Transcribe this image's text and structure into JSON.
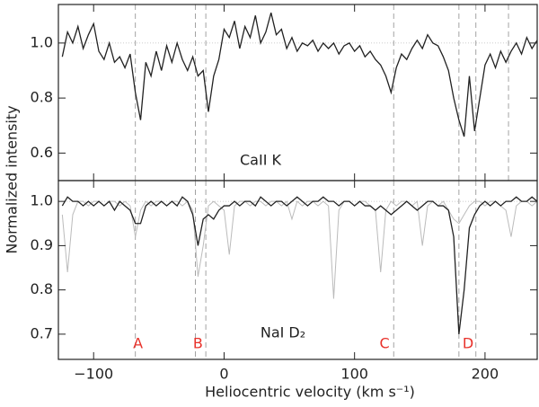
{
  "chart_data": [
    {
      "type": "line",
      "label": "CaII K",
      "ylabel": "Normalized intensity",
      "xlim": [
        -127,
        240
      ],
      "ylim": [
        0.5,
        1.14
      ],
      "xticks": [
        {
          "value": -100,
          "label": "−100"
        },
        0,
        100,
        200
      ],
      "yticks": [
        0.6,
        0.8,
        {
          "value": 1,
          "label": "1.0"
        }
      ],
      "hline": 1,
      "vlines": [
        -68,
        -22,
        -14,
        130,
        180,
        193,
        218
      ],
      "x": [
        -124,
        -120,
        -116,
        -112,
        -108,
        -104,
        -100,
        -96,
        -92,
        -88,
        -84,
        -80,
        -76,
        -72,
        -68,
        -64,
        -60,
        -56,
        -52,
        -48,
        -44,
        -40,
        -36,
        -32,
        -28,
        -24,
        -20,
        -16,
        -12,
        -8,
        -4,
        0,
        4,
        8,
        12,
        16,
        20,
        24,
        28,
        32,
        36,
        40,
        44,
        48,
        52,
        56,
        60,
        64,
        68,
        72,
        76,
        80,
        84,
        88,
        92,
        96,
        100,
        104,
        108,
        112,
        116,
        120,
        124,
        128,
        132,
        136,
        140,
        144,
        148,
        152,
        156,
        160,
        164,
        168,
        172,
        176,
        180,
        184,
        188,
        192,
        196,
        200,
        204,
        208,
        212,
        216,
        220,
        224,
        228,
        232,
        236,
        240
      ],
      "series": [
        {
          "color": "#222222",
          "values": [
            0.95,
            1.04,
            1.0,
            1.06,
            0.98,
            1.03,
            1.07,
            0.97,
            0.94,
            1.0,
            0.93,
            0.95,
            0.91,
            0.96,
            0.82,
            0.72,
            0.93,
            0.88,
            0.97,
            0.9,
            0.99,
            0.93,
            1.0,
            0.94,
            0.9,
            0.95,
            0.88,
            0.9,
            0.75,
            0.88,
            0.94,
            1.05,
            1.02,
            1.08,
            0.98,
            1.06,
            1.02,
            1.1,
            1.0,
            1.04,
            1.11,
            1.03,
            1.05,
            0.98,
            1.02,
            0.97,
            1.0,
            0.99,
            1.01,
            0.97,
            1.0,
            0.98,
            1.0,
            0.96,
            0.99,
            1.0,
            0.97,
            0.99,
            0.95,
            0.97,
            0.94,
            0.92,
            0.88,
            0.82,
            0.91,
            0.96,
            0.94,
            0.98,
            1.01,
            0.98,
            1.03,
            1.0,
            0.99,
            0.95,
            0.9,
            0.8,
            0.72,
            0.66,
            0.88,
            0.68,
            0.8,
            0.92,
            0.96,
            0.91,
            0.97,
            0.93,
            0.97,
            1.0,
            0.96,
            1.02,
            0.98,
            1.01
          ]
        }
      ]
    },
    {
      "type": "line",
      "label": "NaI D₂",
      "xlabel": "Heliocentric velocity (km s⁻¹)",
      "xlim": [
        -127,
        240
      ],
      "ylim": [
        0.643,
        1.047
      ],
      "xticks": [
        {
          "value": -100,
          "label": "−100"
        },
        0,
        100,
        200
      ],
      "yticks": [
        0.7,
        0.8,
        0.9,
        {
          "value": 1,
          "label": "1.0"
        }
      ],
      "hline": 1,
      "vlines": [
        -68,
        -22,
        -14,
        130,
        180,
        193
      ],
      "annotations": [
        {
          "text": "A",
          "x": -66,
          "color": "#e8312a"
        },
        {
          "text": "B",
          "x": -20,
          "color": "#e8312a"
        },
        {
          "text": "C",
          "x": 123,
          "color": "#e8312a"
        },
        {
          "text": "D",
          "x": 187,
          "color": "#e8312a"
        }
      ],
      "x": [
        -124,
        -120,
        -116,
        -112,
        -108,
        -104,
        -100,
        -96,
        -92,
        -88,
        -84,
        -80,
        -76,
        -72,
        -68,
        -64,
        -60,
        -56,
        -52,
        -48,
        -44,
        -40,
        -36,
        -32,
        -28,
        -24,
        -20,
        -16,
        -12,
        -8,
        -4,
        0,
        4,
        8,
        12,
        16,
        20,
        24,
        28,
        32,
        36,
        40,
        44,
        48,
        52,
        56,
        60,
        64,
        68,
        72,
        76,
        80,
        84,
        88,
        92,
        96,
        100,
        104,
        108,
        112,
        116,
        120,
        124,
        128,
        132,
        136,
        140,
        144,
        148,
        152,
        156,
        160,
        164,
        168,
        172,
        176,
        180,
        184,
        188,
        192,
        196,
        200,
        204,
        208,
        212,
        216,
        220,
        224,
        228,
        232,
        236,
        240
      ],
      "series": [
        {
          "color": "#bbbbbb",
          "values": [
            0.97,
            0.84,
            0.97,
            1.0,
            1.0,
            0.99,
            1.0,
            1.0,
            0.99,
            1.0,
            1.0,
            0.99,
            1.0,
            0.99,
            0.92,
            0.98,
            1.0,
            0.99,
            1.0,
            1.0,
            0.99,
            1.0,
            1.0,
            0.99,
            1.0,
            0.98,
            0.83,
            0.9,
            0.99,
            1.0,
            0.99,
            0.98,
            0.88,
            0.99,
            1.0,
            1.0,
            0.99,
            1.0,
            1.0,
            0.99,
            1.0,
            1.0,
            0.99,
            1.0,
            0.96,
            1.0,
            0.99,
            1.0,
            1.0,
            0.99,
            1.0,
            0.99,
            0.78,
            0.98,
            1.0,
            1.0,
            0.99,
            1.0,
            1.0,
            0.99,
            0.98,
            0.84,
            0.98,
            1.0,
            0.99,
            1.0,
            1.0,
            0.99,
            1.0,
            0.9,
            0.99,
            1.0,
            0.99,
            1.0,
            0.98,
            0.96,
            0.95,
            0.97,
            0.99,
            1.0,
            1.0,
            0.99,
            1.0,
            1.0,
            0.99,
            0.98,
            0.92,
            0.99,
            1.0,
            1.0,
            0.99,
            1.0
          ]
        },
        {
          "color": "#222222",
          "values": [
            0.99,
            1.01,
            1.0,
            1.0,
            0.99,
            1.0,
            0.99,
            1.0,
            0.99,
            1.0,
            0.98,
            1.0,
            0.99,
            0.98,
            0.95,
            0.95,
            0.99,
            1.0,
            0.99,
            1.0,
            0.99,
            1.0,
            0.99,
            1.01,
            1.0,
            0.97,
            0.9,
            0.96,
            0.97,
            0.96,
            0.98,
            0.99,
            0.99,
            1.0,
            0.99,
            1.0,
            1.0,
            0.99,
            1.01,
            1.0,
            0.99,
            1.0,
            1.0,
            0.99,
            1.0,
            1.01,
            1.0,
            0.99,
            1.0,
            1.0,
            1.01,
            1.0,
            1.0,
            0.99,
            1.0,
            1.0,
            0.99,
            1.0,
            0.99,
            0.99,
            0.98,
            0.99,
            0.98,
            0.97,
            0.98,
            0.99,
            1.0,
            0.99,
            0.98,
            0.99,
            1.0,
            1.0,
            0.99,
            0.99,
            0.98,
            0.92,
            0.7,
            0.8,
            0.94,
            0.97,
            0.99,
            1.0,
            0.99,
            1.0,
            0.99,
            1.0,
            1.0,
            1.01,
            1.0,
            1.0,
            1.01,
            1.0
          ]
        }
      ]
    }
  ]
}
